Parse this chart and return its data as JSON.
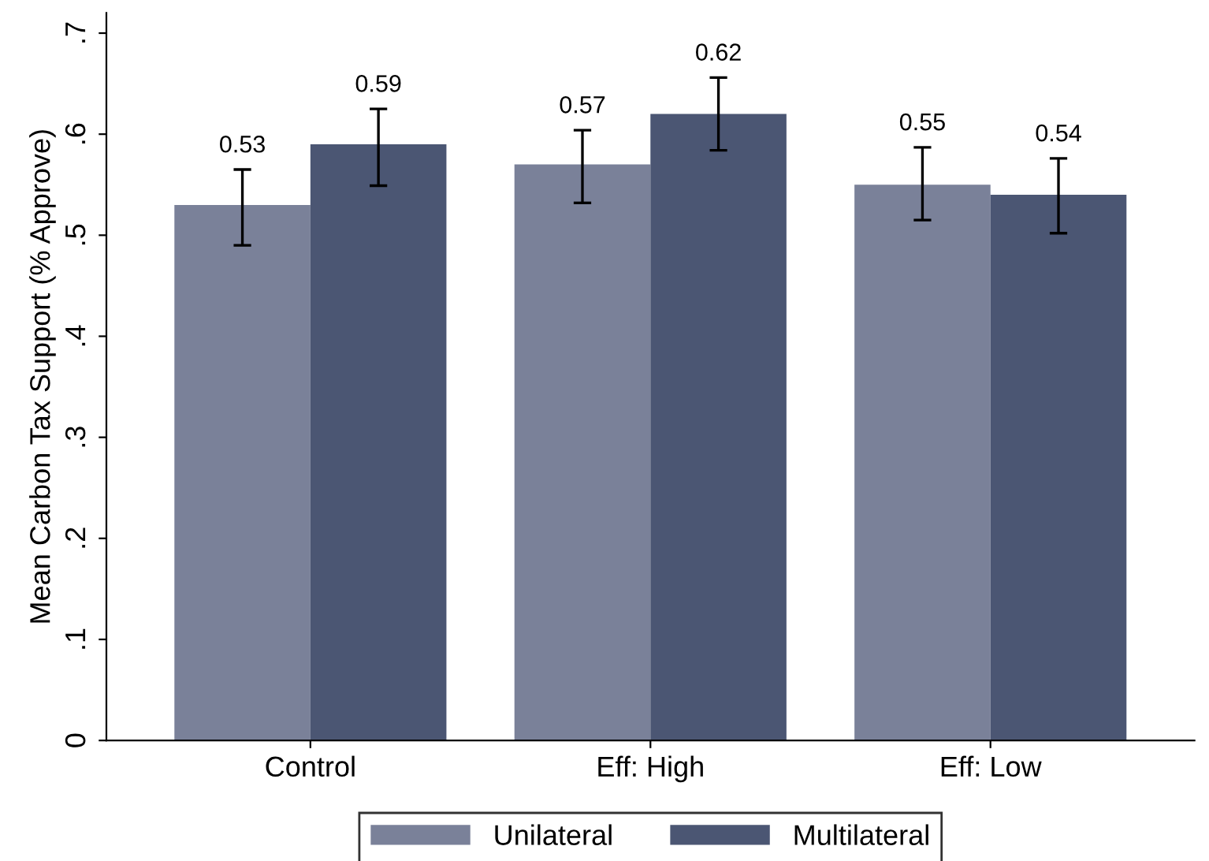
{
  "chart_data": {
    "type": "bar",
    "ylabel": "Mean Carbon Tax Support (% Approve)",
    "categories": [
      "Control",
      "Eff: High",
      "Eff: Low"
    ],
    "series": [
      {
        "name": "Unilateral",
        "color": "#7a8199",
        "values": [
          0.53,
          0.57,
          0.55
        ],
        "errors": [
          [
            0.49,
            0.565
          ],
          [
            0.532,
            0.604
          ],
          [
            0.515,
            0.587
          ]
        ]
      },
      {
        "name": "Multilateral",
        "color": "#4b5673",
        "values": [
          0.59,
          0.62,
          0.54
        ],
        "errors": [
          [
            0.549,
            0.625
          ],
          [
            0.584,
            0.656
          ],
          [
            0.502,
            0.576
          ]
        ]
      }
    ],
    "ylim": [
      0,
      0.72
    ],
    "yticks": [
      0,
      {
        "value": 0.1,
        "label": ".1"
      },
      {
        "value": 0.2,
        "label": ".2"
      },
      {
        "value": 0.3,
        "label": ".3"
      },
      {
        "value": 0.4,
        "label": ".4"
      },
      {
        "value": 0.5,
        "label": ".5"
      },
      {
        "value": 0.6,
        "label": ".6"
      },
      {
        "value": 0.7,
        "label": ".7"
      }
    ],
    "data_labels": true,
    "grid": false,
    "legend": "bottom"
  }
}
